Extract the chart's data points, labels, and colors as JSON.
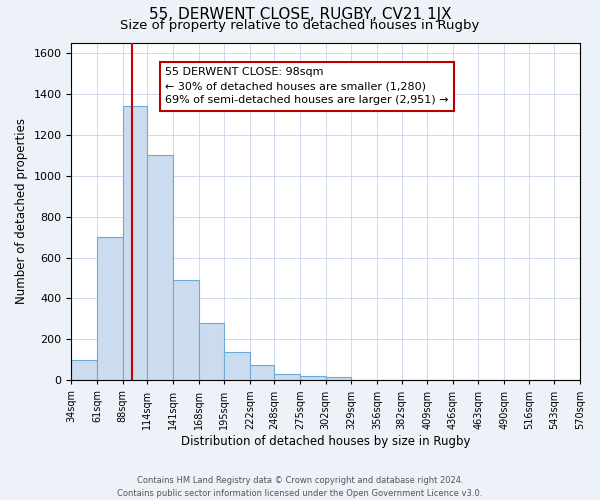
{
  "title": "55, DERWENT CLOSE, RUGBY, CV21 1JX",
  "subtitle": "Size of property relative to detached houses in Rugby",
  "xlabel": "Distribution of detached houses by size in Rugby",
  "ylabel": "Number of detached properties",
  "footer_line1": "Contains HM Land Registry data © Crown copyright and database right 2024.",
  "footer_line2": "Contains public sector information licensed under the Open Government Licence v3.0.",
  "bin_labels": [
    "34sqm",
    "61sqm",
    "88sqm",
    "114sqm",
    "141sqm",
    "168sqm",
    "195sqm",
    "222sqm",
    "248sqm",
    "275sqm",
    "302sqm",
    "329sqm",
    "356sqm",
    "382sqm",
    "409sqm",
    "436sqm",
    "463sqm",
    "490sqm",
    "516sqm",
    "543sqm",
    "570sqm"
  ],
  "bar_values": [
    100,
    700,
    1340,
    1100,
    490,
    280,
    140,
    75,
    30,
    20,
    15,
    0,
    0,
    0,
    0,
    0,
    0,
    0,
    0,
    0
  ],
  "bar_color": "#ccdcef",
  "bar_edgecolor": "#6aaad4",
  "bar_linewidth": 0.8,
  "property_line_x": 98,
  "property_line_color": "#cc0000",
  "ylim": [
    0,
    1650
  ],
  "yticks": [
    0,
    200,
    400,
    600,
    800,
    1000,
    1200,
    1400,
    1600
  ],
  "annotation_title": "55 DERWENT CLOSE: 98sqm",
  "annotation_line1": "← 30% of detached houses are smaller (1,280)",
  "annotation_line2": "69% of semi-detached houses are larger (2,951) →",
  "grid_color": "#c8d4e8",
  "bg_color": "#edf1f8",
  "plot_bg_color": "#ffffff",
  "title_fontsize": 11,
  "subtitle_fontsize": 9.5
}
